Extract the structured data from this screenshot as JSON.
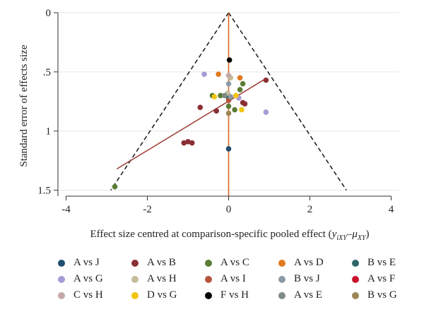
{
  "chart_data": {
    "type": "scatter",
    "subtype": "funnel",
    "xlabel_main": "Effect size centred at comparison-specific pooled effect (",
    "xlabel_math": "y",
    "xlabel_sub1": "iXY",
    "xlabel_minus": "–",
    "xlabel_mu": "μ",
    "xlabel_sub2": "XY",
    "xlabel_close": ")",
    "ylabel": "Standard error of effects size",
    "xlim": [
      -4.2,
      4.2
    ],
    "ylim": [
      0,
      1.55
    ],
    "y_reversed": true,
    "grid": true,
    "x_ticks": [
      {
        "value": -4,
        "label": "-4"
      },
      {
        "value": -2,
        "label": "-2"
      },
      {
        "value": 0,
        "label": "0"
      },
      {
        "value": 2,
        "label": "2"
      },
      {
        "value": 4,
        "label": "4"
      }
    ],
    "y_ticks": [
      {
        "value": 0,
        "label": "0"
      },
      {
        "value": 0.5,
        "label": ".5"
      },
      {
        "value": 1,
        "label": "1"
      },
      {
        "value": 1.5,
        "label": "1.5"
      }
    ],
    "funnel": {
      "apex": [
        0,
        0
      ],
      "left_end": [
        -2.9,
        1.5
      ],
      "right_end": [
        2.9,
        1.5
      ],
      "color": "#222222"
    },
    "vline": {
      "x": 0,
      "y_from": 0,
      "y_to": 1.55,
      "color": "#d9662b"
    },
    "regression_line": {
      "from": [
        -2.75,
        1.32
      ],
      "to": [
        0.9,
        0.56
      ],
      "color": "#9a3b30"
    },
    "legend_position": "bottom",
    "series": [
      {
        "name": "A vs J",
        "color": "#1f4e6e",
        "points": [
          [
            0.0,
            1.15
          ]
        ]
      },
      {
        "name": "A vs B",
        "color": "#8b2f34",
        "points": [
          [
            -1.1,
            1.1
          ],
          [
            -1.0,
            1.09
          ],
          [
            -0.9,
            1.1
          ],
          [
            -0.7,
            0.8
          ],
          [
            -0.3,
            0.83
          ],
          [
            0.35,
            0.76
          ],
          [
            0.4,
            0.77
          ],
          [
            0.92,
            0.57
          ]
        ]
      },
      {
        "name": "A vs C",
        "color": "#5a7c34",
        "points": [
          [
            -2.8,
            1.47
          ],
          [
            -0.4,
            0.7
          ],
          [
            -0.2,
            0.7
          ],
          [
            0.15,
            0.82
          ],
          [
            0.28,
            0.65
          ],
          [
            0.35,
            0.6
          ],
          [
            0.0,
            0.79
          ]
        ]
      },
      {
        "name": "A vs D",
        "color": "#e07a1f",
        "points": [
          [
            -0.25,
            0.52
          ],
          [
            0.28,
            0.55
          ]
        ]
      },
      {
        "name": "B vs E",
        "color": "#2e6767",
        "points": [
          [
            0.0,
            0.72
          ]
        ]
      },
      {
        "name": "A vs G",
        "color": "#a69bd6",
        "points": [
          [
            -0.6,
            0.52
          ],
          [
            0.92,
            0.84
          ],
          [
            0.25,
            0.72
          ]
        ]
      },
      {
        "name": "A vs H",
        "color": "#c4bc9b",
        "points": [
          [
            0.05,
            0.55
          ],
          [
            -0.02,
            0.68
          ]
        ]
      },
      {
        "name": "A vs I",
        "color": "#b5533a",
        "points": [
          [
            0.0,
            0.74
          ]
        ]
      },
      {
        "name": "B vs J",
        "color": "#8c9aa6",
        "points": [
          [
            0.0,
            0.6
          ],
          [
            0.05,
            0.71
          ]
        ]
      },
      {
        "name": "A vs F",
        "color": "#c8102e",
        "points": []
      },
      {
        "name": "C vs H",
        "color": "#c4a8a8",
        "points": [
          [
            0.0,
            0.53
          ]
        ]
      },
      {
        "name": "D vs G",
        "color": "#f2c40f",
        "points": [
          [
            -0.35,
            0.71
          ],
          [
            0.32,
            0.82
          ],
          [
            0.18,
            0.7
          ]
        ]
      },
      {
        "name": "F vs H",
        "color": "#000000",
        "points": [
          [
            0.02,
            0.4
          ]
        ]
      },
      {
        "name": "A vs E",
        "color": "#7c8c84",
        "points": [
          [
            -0.1,
            0.7
          ]
        ]
      },
      {
        "name": "B vs G",
        "color": "#9c8654",
        "points": [
          [
            0.0,
            0.85
          ]
        ]
      }
    ]
  }
}
